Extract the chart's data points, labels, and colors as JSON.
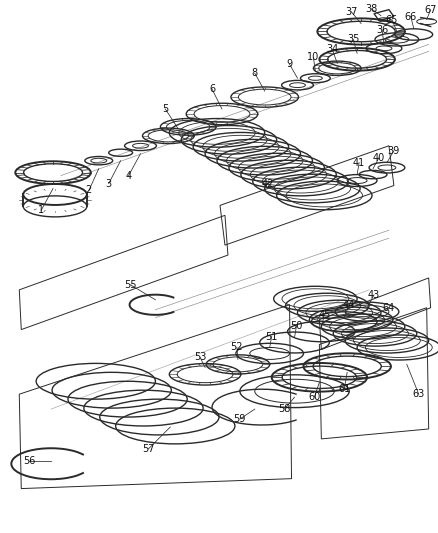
{
  "bg_color": "#ffffff",
  "line_color": "#2a2a2a",
  "label_color": "#111111",
  "label_fontsize": 7.0,
  "fig_width": 4.39,
  "fig_height": 5.33,
  "dpi": 100
}
